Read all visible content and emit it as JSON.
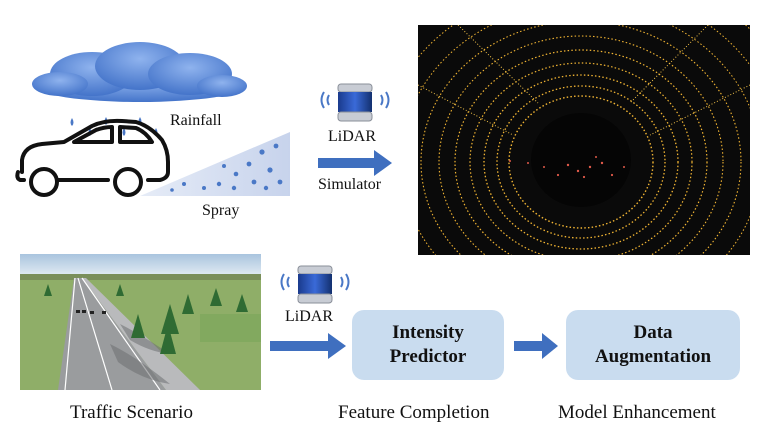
{
  "top": {
    "rainfall_label": "Rainfall",
    "spray_label": "Spray",
    "lidar_label": "LiDAR",
    "simulator_label": "Simulator"
  },
  "bottom": {
    "lidar_label": "LiDAR",
    "intensity_box": "Intensity Predictor",
    "augmentation_box": "Data Augmentation"
  },
  "captions": {
    "traffic": "Traffic Scenario",
    "feature": "Feature Completion",
    "model": "Model Enhancement"
  },
  "colors": {
    "arrow": "#3f6fbf",
    "box_fill": "#c9dcef",
    "cloud": "#5b88d6",
    "raindrop": "#4a78c6",
    "point_cloud": "#f2b533",
    "point_cloud_red": "#e05a4a"
  }
}
